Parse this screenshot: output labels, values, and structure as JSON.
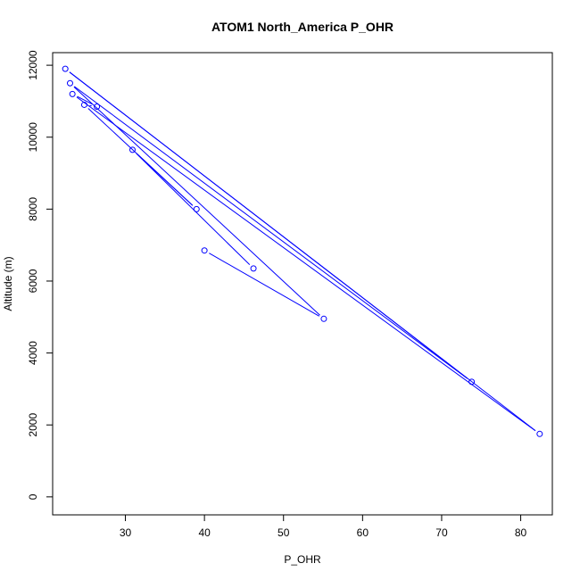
{
  "chart_data": {
    "type": "line",
    "title": "ATOM1 North_America P_OHR",
    "xlabel": "P_OHR",
    "ylabel": "Altitude (m)",
    "xlim": [
      20.8,
      84.0
    ],
    "ylim": [
      -500,
      12350
    ],
    "xticks": [
      30,
      40,
      50,
      60,
      70,
      80
    ],
    "yticks": [
      0,
      2000,
      4000,
      6000,
      8000,
      10000,
      12000
    ],
    "grid": false,
    "series_color": "#0000ff",
    "series": [
      {
        "x": [
          40.0,
          55.1,
          23.0,
          73.8,
          22.4,
          82.4,
          23.3,
          26.4,
          24.8,
          39.0,
          30.9,
          46.2
        ],
        "y": [
          6850,
          4950,
          11500,
          3200,
          11900,
          1750,
          11200,
          10850,
          10900,
          8000,
          9650,
          6350
        ]
      }
    ]
  }
}
